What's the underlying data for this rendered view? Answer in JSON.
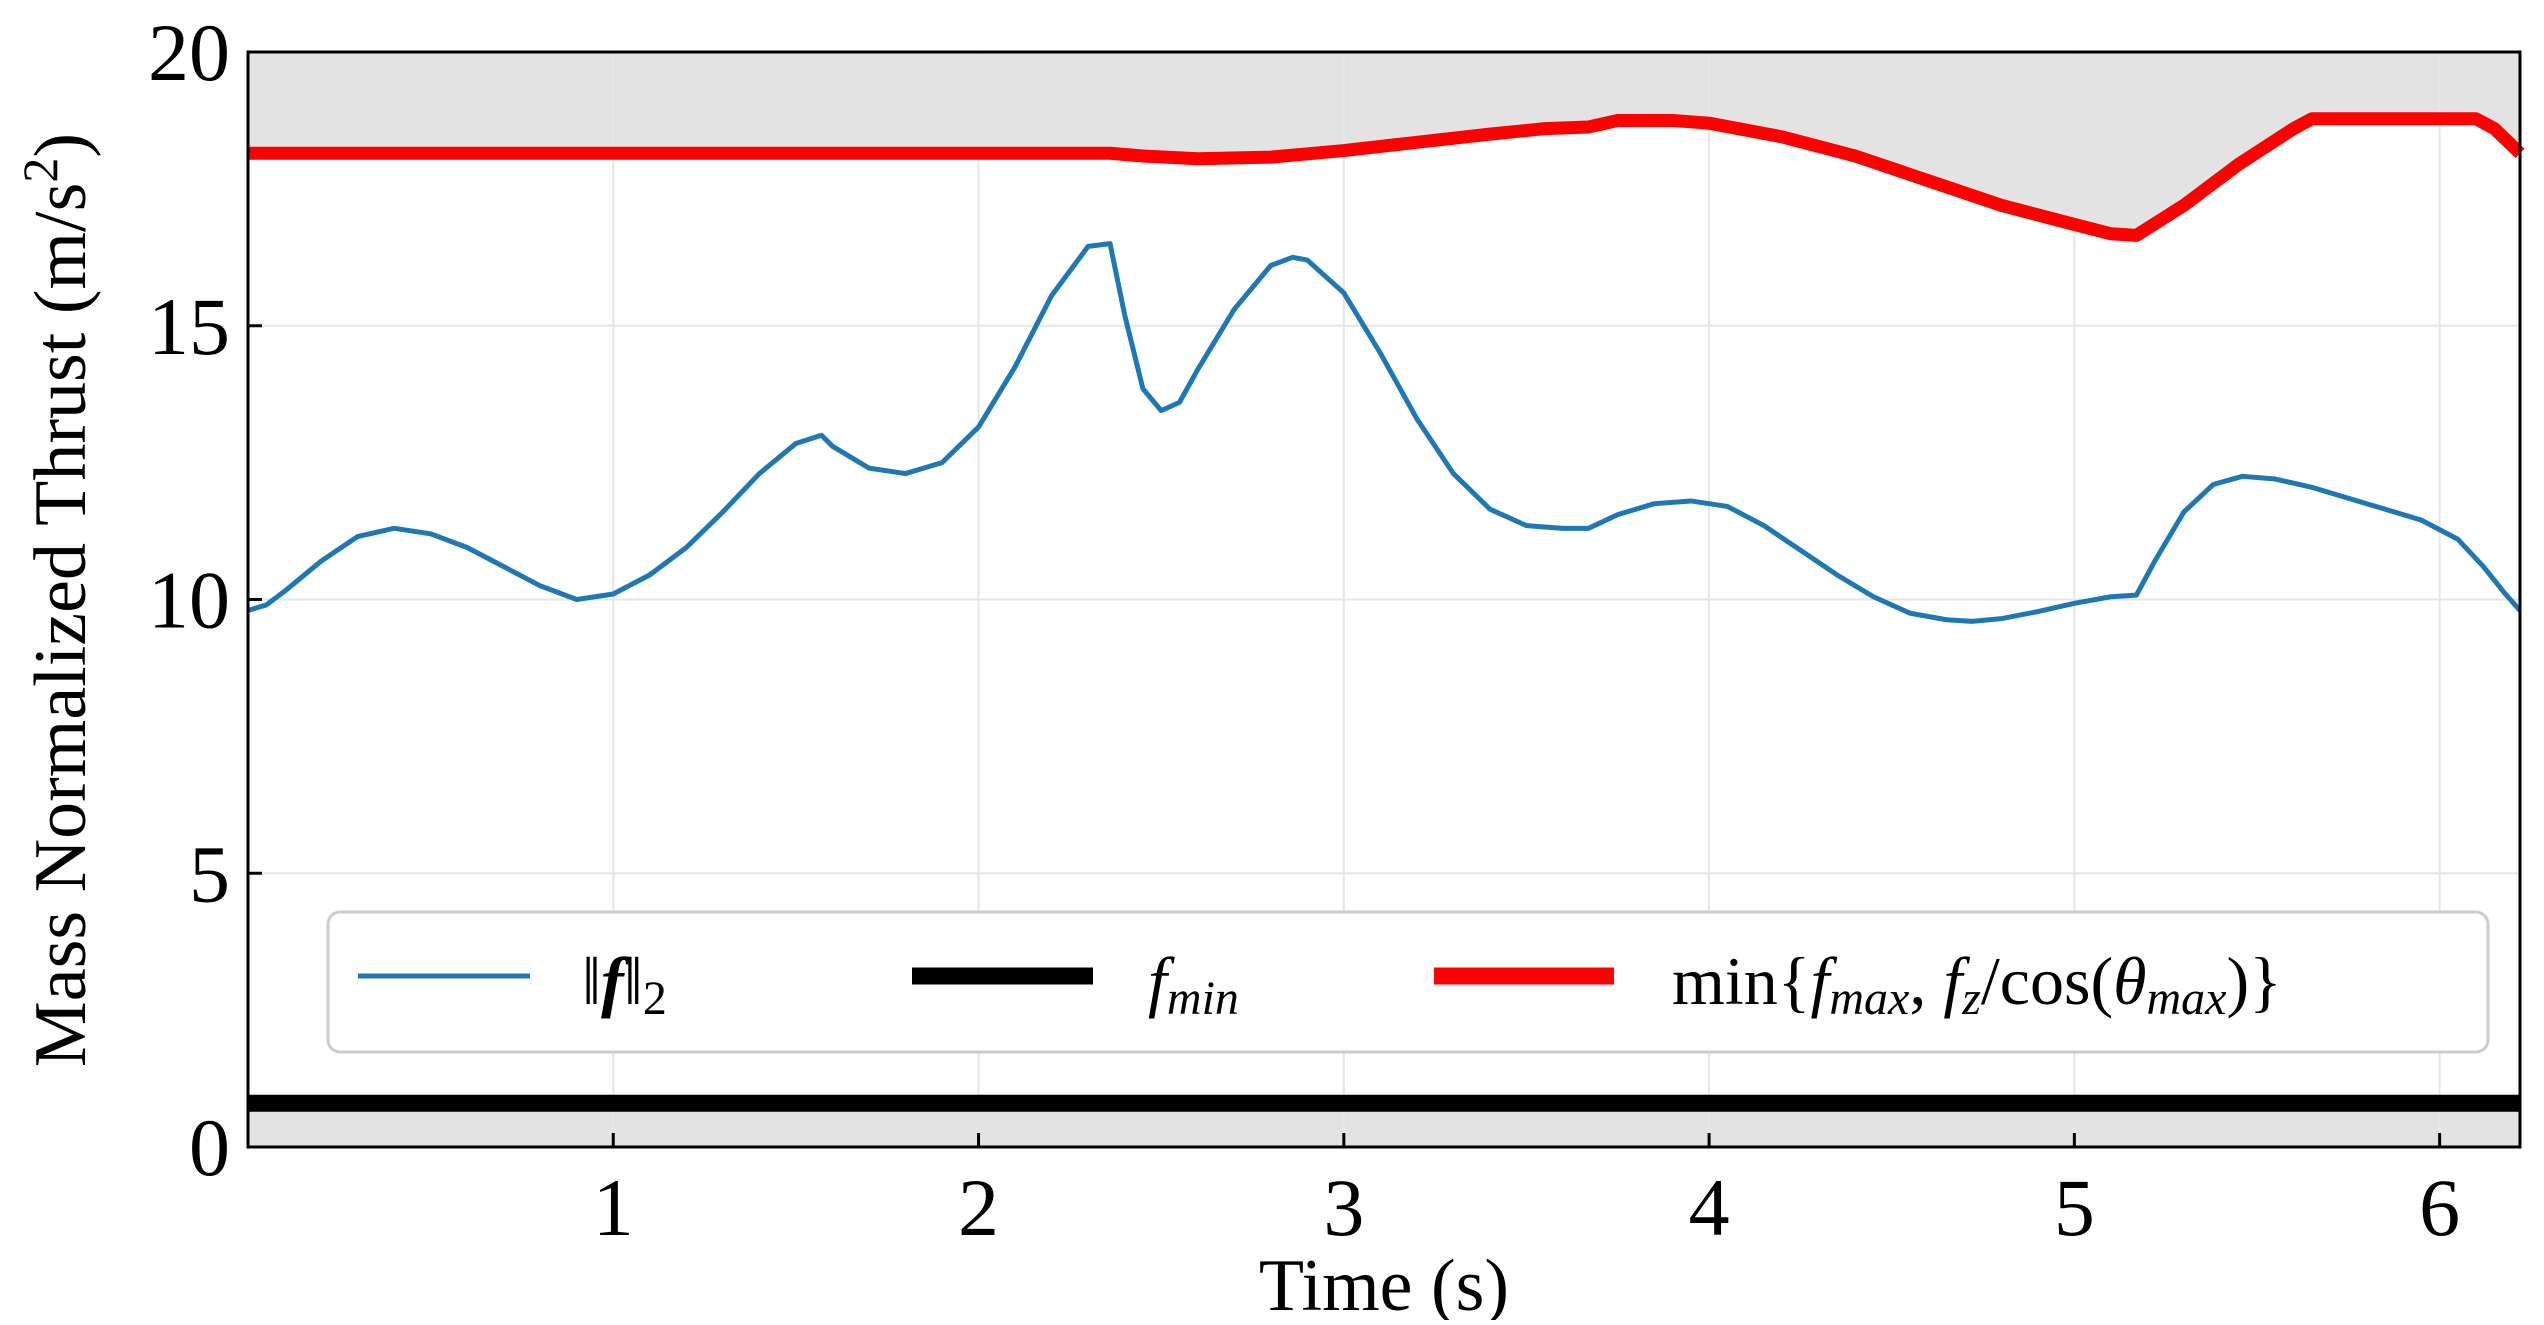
{
  "chart_data": {
    "type": "line",
    "xlabel": "Time (s)",
    "ylabel_main": "Mass Normalized Thrust (m/s",
    "ylabel_sup": "2",
    "ylabel_close": ")",
    "xlim": [
      0,
      6.22
    ],
    "ylim": [
      0,
      20
    ],
    "x_ticks": [
      1,
      2,
      3,
      4,
      5,
      6
    ],
    "y_ticks": [
      0,
      5,
      10,
      15,
      20
    ],
    "grid": true,
    "legend_position": "lower center",
    "shaded_regions": [
      {
        "description": "above upper thrust limit",
        "color": "#e3e3e3"
      },
      {
        "description": "below minimum thrust",
        "color": "#e3e3e3",
        "y_range": [
          0,
          0.8
        ]
      }
    ],
    "series": [
      {
        "name": "‖f‖₂",
        "legend_parts": {
          "open": "‖",
          "bold": "f",
          "close": "‖",
          "sub": "2"
        },
        "color": "#1f77b4",
        "points": [
          [
            0.0,
            9.8
          ],
          [
            0.05,
            9.9
          ],
          [
            0.1,
            10.15
          ],
          [
            0.2,
            10.7
          ],
          [
            0.3,
            11.15
          ],
          [
            0.4,
            11.3
          ],
          [
            0.5,
            11.2
          ],
          [
            0.6,
            10.95
          ],
          [
            0.7,
            10.6
          ],
          [
            0.8,
            10.25
          ],
          [
            0.9,
            10.0
          ],
          [
            1.0,
            10.1
          ],
          [
            1.1,
            10.45
          ],
          [
            1.2,
            10.95
          ],
          [
            1.3,
            11.6
          ],
          [
            1.4,
            12.3
          ],
          [
            1.5,
            12.85
          ],
          [
            1.57,
            13.0
          ],
          [
            1.6,
            12.8
          ],
          [
            1.7,
            12.4
          ],
          [
            1.8,
            12.3
          ],
          [
            1.9,
            12.5
          ],
          [
            2.0,
            13.15
          ],
          [
            2.1,
            14.25
          ],
          [
            2.2,
            15.55
          ],
          [
            2.3,
            16.45
          ],
          [
            2.36,
            16.5
          ],
          [
            2.4,
            15.2
          ],
          [
            2.45,
            13.85
          ],
          [
            2.5,
            13.45
          ],
          [
            2.55,
            13.6
          ],
          [
            2.6,
            14.2
          ],
          [
            2.7,
            15.3
          ],
          [
            2.8,
            16.1
          ],
          [
            2.86,
            16.25
          ],
          [
            2.9,
            16.2
          ],
          [
            3.0,
            15.6
          ],
          [
            3.1,
            14.5
          ],
          [
            3.2,
            13.3
          ],
          [
            3.3,
            12.3
          ],
          [
            3.4,
            11.65
          ],
          [
            3.5,
            11.35
          ],
          [
            3.6,
            11.3
          ],
          [
            3.67,
            11.3
          ],
          [
            3.75,
            11.55
          ],
          [
            3.85,
            11.75
          ],
          [
            3.95,
            11.8
          ],
          [
            4.05,
            11.7
          ],
          [
            4.15,
            11.35
          ],
          [
            4.25,
            10.9
          ],
          [
            4.35,
            10.45
          ],
          [
            4.45,
            10.05
          ],
          [
            4.55,
            9.75
          ],
          [
            4.65,
            9.63
          ],
          [
            4.72,
            9.6
          ],
          [
            4.8,
            9.65
          ],
          [
            4.9,
            9.78
          ],
          [
            5.0,
            9.93
          ],
          [
            5.1,
            10.05
          ],
          [
            5.17,
            10.08
          ],
          [
            5.22,
            10.7
          ],
          [
            5.3,
            11.6
          ],
          [
            5.38,
            12.1
          ],
          [
            5.46,
            12.25
          ],
          [
            5.55,
            12.2
          ],
          [
            5.65,
            12.05
          ],
          [
            5.75,
            11.85
          ],
          [
            5.85,
            11.65
          ],
          [
            5.95,
            11.45
          ],
          [
            6.05,
            11.1
          ],
          [
            6.12,
            10.6
          ],
          [
            6.18,
            10.1
          ],
          [
            6.22,
            9.8
          ]
        ]
      },
      {
        "name": "f_min",
        "legend_parts": {
          "base": "f",
          "sub": "min"
        },
        "color": "#000000",
        "points": [
          [
            0.0,
            0.8
          ],
          [
            6.22,
            0.8
          ]
        ]
      },
      {
        "name": "min{f_max, f_z/cos(θ_max)}",
        "legend_parts": {
          "pre": "min{",
          "f1": "f",
          "s1": "max",
          "mid1": ", ",
          "f2": "f",
          "s2": "z",
          "mid2": "/cos(",
          "th": "θ",
          "s3": "max",
          "post": ")}"
        },
        "color": "#ff0000",
        "points": [
          [
            0.0,
            18.15
          ],
          [
            2.36,
            18.15
          ],
          [
            2.45,
            18.1
          ],
          [
            2.6,
            18.05
          ],
          [
            2.8,
            18.08
          ],
          [
            3.0,
            18.2
          ],
          [
            3.2,
            18.35
          ],
          [
            3.4,
            18.5
          ],
          [
            3.55,
            18.6
          ],
          [
            3.67,
            18.63
          ],
          [
            3.75,
            18.75
          ],
          [
            3.9,
            18.75
          ],
          [
            4.0,
            18.7
          ],
          [
            4.2,
            18.45
          ],
          [
            4.4,
            18.1
          ],
          [
            4.6,
            17.65
          ],
          [
            4.8,
            17.2
          ],
          [
            5.0,
            16.85
          ],
          [
            5.1,
            16.68
          ],
          [
            5.17,
            16.65
          ],
          [
            5.3,
            17.2
          ],
          [
            5.45,
            17.95
          ],
          [
            5.6,
            18.6
          ],
          [
            5.65,
            18.78
          ],
          [
            6.1,
            18.78
          ],
          [
            6.15,
            18.6
          ],
          [
            6.22,
            18.15
          ]
        ]
      }
    ]
  }
}
